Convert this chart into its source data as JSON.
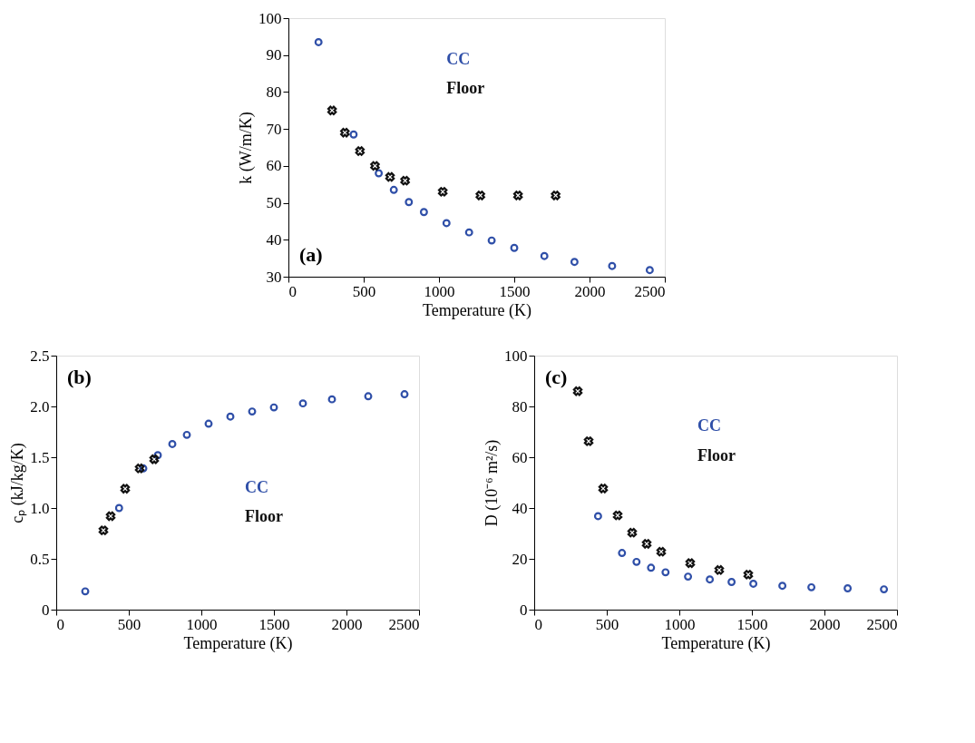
{
  "chart_data": [
    {
      "type": "scatter",
      "xlabel": "Temperature (K)",
      "ylabel": "k (W/m/K)",
      "annotations": [
        "(a)"
      ],
      "xlim": [
        0,
        2500
      ],
      "xticks": [
        0,
        500,
        1000,
        1500,
        2000,
        2500
      ],
      "ylim": [
        30,
        100
      ],
      "yticks": [
        30,
        40,
        50,
        60,
        70,
        80,
        90,
        100
      ],
      "grid": false,
      "series": [
        {
          "name": "CC",
          "color": "#2f4fa8",
          "marker": "circle",
          "x": [
            200,
            433,
            600,
            700,
            800,
            900,
            1050,
            1200,
            1350,
            1500,
            1700,
            1900,
            2150,
            2400
          ],
          "values": [
            93.5,
            68.5,
            58,
            53.5,
            50.2,
            47.5,
            44.5,
            42,
            39.8,
            37.8,
            35.6,
            34,
            32.9,
            31.8
          ]
        },
        {
          "name": "Floor",
          "color": "#111111",
          "marker": "cross",
          "x": [
            290,
            375,
            475,
            575,
            675,
            775,
            1025,
            1275,
            1525,
            1775
          ],
          "values": [
            75,
            69,
            64,
            60,
            57,
            56,
            53,
            52,
            52,
            52
          ]
        }
      ]
    },
    {
      "type": "scatter",
      "xlabel": "Temperature (K)",
      "ylabel": "cₚ (kJ/kg/K)",
      "annotations": [
        "(b)"
      ],
      "xlim": [
        0,
        2500
      ],
      "xticks": [
        0,
        500,
        1000,
        1500,
        2000,
        2500
      ],
      "ylim": [
        0,
        2.5
      ],
      "yticks": [
        0,
        0.5,
        {
          "value": 1,
          "label": "1.0"
        },
        1.5,
        {
          "value": 2,
          "label": "2.0"
        },
        2.5
      ],
      "grid": false,
      "series": [
        {
          "name": "CC",
          "color": "#2f4fa8",
          "marker": "circle",
          "x": [
            200,
            433,
            600,
            700,
            800,
            900,
            1050,
            1200,
            1350,
            1500,
            1700,
            1900,
            2150,
            2400
          ],
          "values": [
            0.18,
            1.0,
            1.39,
            1.52,
            1.63,
            1.72,
            1.83,
            1.9,
            1.95,
            1.99,
            2.03,
            2.07,
            2.1,
            2.12
          ]
        },
        {
          "name": "Floor",
          "color": "#111111",
          "marker": "cross",
          "x": [
            325,
            375,
            475,
            575,
            675
          ],
          "values": [
            0.78,
            0.92,
            1.19,
            1.39,
            1.48
          ]
        }
      ]
    },
    {
      "type": "scatter",
      "xlabel": "Temperature (K)",
      "ylabel": "D (10⁻⁶ m²/s)",
      "annotations": [
        "(c)"
      ],
      "xlim": [
        0,
        2500
      ],
      "xticks": [
        0,
        500,
        1000,
        1500,
        2000,
        2500
      ],
      "ylim": [
        0,
        100
      ],
      "yticks": [
        0,
        20,
        40,
        60,
        80,
        100
      ],
      "grid": false,
      "series": [
        {
          "name": "CC",
          "color": "#2f4fa8",
          "marker": "circle",
          "x": [
            440,
            605,
            705,
            805,
            905,
            1060,
            1210,
            1360,
            1510,
            1710,
            1910,
            2160,
            2410
          ],
          "values": [
            36.8,
            22.3,
            18.8,
            16.5,
            14.7,
            13,
            11.9,
            10.9,
            10.2,
            9.4,
            8.8,
            8.4,
            8.0
          ]
        },
        {
          "name": "Floor",
          "color": "#111111",
          "marker": "cross",
          "x": [
            300,
            375,
            475,
            575,
            675,
            775,
            875,
            1075,
            1275,
            1475
          ],
          "values": [
            86,
            66.3,
            47.7,
            37.1,
            30.3,
            25.9,
            22.8,
            18.3,
            15.6,
            13.8
          ]
        }
      ]
    }
  ]
}
